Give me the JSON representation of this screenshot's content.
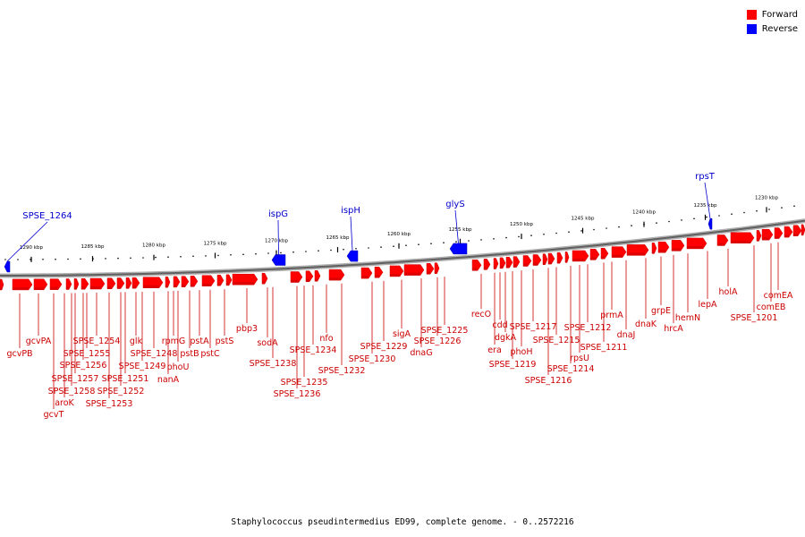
{
  "legend": [
    {
      "label": "Forward",
      "color": "#ff0000"
    },
    {
      "label": "Reverse",
      "color": "#0000ff"
    }
  ],
  "caption": "Staphylococcus pseudintermedius ED99, complete genome. - 0..2572216",
  "axis": {
    "ticks": [
      "1290 kbp",
      "1285 kbp",
      "1280 kbp",
      "1275 kbp",
      "1270 kbp",
      "1265 kbp",
      "1260 kbp",
      "1255 kbp",
      "1250 kbp",
      "1245 kbp",
      "1240 kbp",
      "1235 kbp",
      "1230 kbp"
    ]
  },
  "reverse_genes": [
    "SPSE_1264",
    "ispG",
    "ispH",
    "glyS",
    "rpsT"
  ],
  "forward_labels": [
    "gcvPA",
    "gcvPB",
    "SPSE_1254",
    "SPSE_1255",
    "SPSE_1256",
    "SPSE_1257",
    "SPSE_1258",
    "aroK",
    "gcvT",
    "SPSE_1253",
    "SPSE_1252",
    "SPSE_1251",
    "glk",
    "SPSE_1249",
    "SPSE_1248",
    "rpmG",
    "phoU",
    "nanA",
    "pstB",
    "pstA",
    "pstC",
    "pstS",
    "pbp3",
    "sodA",
    "SPSE_1238",
    "SPSE_1235",
    "SPSE_1236",
    "SPSE_1234",
    "nfo",
    "SPSE_1232",
    "SPSE_1230",
    "SPSE_1229",
    "sigA",
    "dnaG",
    "SPSE_1226",
    "SPSE_1225",
    "recO",
    "era",
    "cdd",
    "dgkA",
    "SPSE_1219",
    "phoH",
    "SPSE_1217",
    "SPSE_1216",
    "SPSE_1215",
    "SPSE_1214",
    "rpsU",
    "SPSE_1212",
    "SPSE_1211",
    "prmA",
    "dnaJ",
    "dnaK",
    "hrcA",
    "grpE",
    "hemN",
    "lepA",
    "holA",
    "SPSE_1201",
    "comEB",
    "comEA"
  ],
  "colors": {
    "forward": "#ff0000",
    "forward_dark": "#cc0000",
    "reverse": "#0000ff",
    "label_forward": "#cc0000",
    "label_reverse": "#0000cc",
    "backbone": "#808080"
  }
}
